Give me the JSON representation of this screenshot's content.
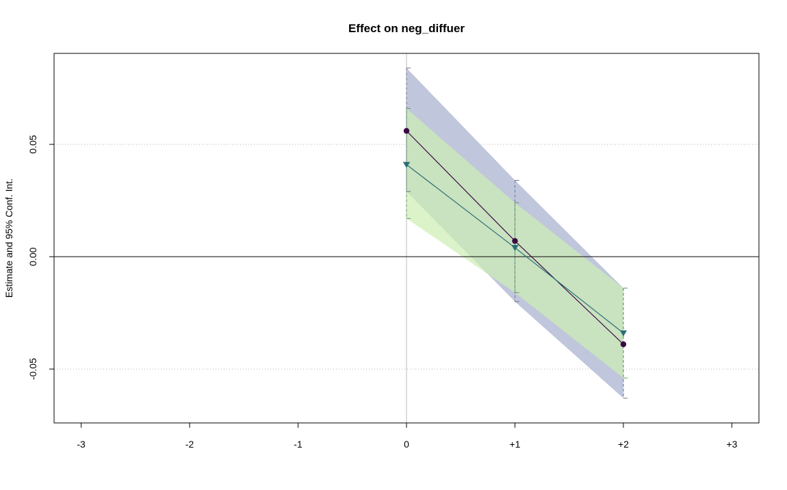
{
  "chart_data": {
    "type": "line",
    "title": "Effect on neg_diffuer",
    "xlabel": "",
    "ylabel": "Estimate and 95% Conf. Int.",
    "x_ticks": [
      "-3",
      "-2",
      "-1",
      "0",
      "+1",
      "+2",
      "+3"
    ],
    "y_ticks": [
      "-0.05",
      "0.00",
      "0.05"
    ],
    "xlim": [
      -3.25,
      3.25
    ],
    "ylim": [
      -0.074,
      0.0905
    ],
    "reference_lines": {
      "vertical_x": 0,
      "horizontal_y": 0
    },
    "grid": "horizontal dotted at y ticks",
    "series": [
      {
        "marker": "circle",
        "color": "#3b0a45",
        "band_color": "#b5bcd6",
        "x": [
          0,
          1,
          2
        ],
        "estimate": [
          0.056,
          0.007,
          -0.039
        ],
        "ci_lower": [
          0.029,
          -0.02,
          -0.063
        ],
        "ci_upper": [
          0.084,
          0.034,
          -0.014
        ]
      },
      {
        "marker": "triangle-down",
        "color": "#2a6e78",
        "band_color": "#cdeeb2",
        "x": [
          0,
          1,
          2
        ],
        "estimate": [
          0.041,
          0.004,
          -0.034
        ],
        "ci_lower": [
          0.017,
          -0.016,
          -0.054
        ],
        "ci_upper": [
          0.066,
          0.024,
          -0.014
        ]
      }
    ]
  }
}
